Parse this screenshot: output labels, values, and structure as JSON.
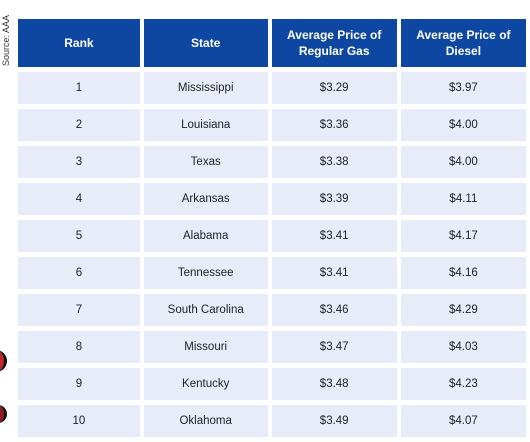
{
  "source_label": "Source: AAA",
  "table": {
    "headers": {
      "rank": "Rank",
      "state": "State",
      "regular": "Average Price of Regular Gas",
      "diesel": "Average Price of Diesel"
    },
    "rows": [
      {
        "rank": "1",
        "state": "Mississippi",
        "regular": "$3.29",
        "diesel": "$3.97"
      },
      {
        "rank": "2",
        "state": "Louisiana",
        "regular": "$3.36",
        "diesel": "$4.00"
      },
      {
        "rank": "3",
        "state": "Texas",
        "regular": "$3.38",
        "diesel": "$4.00"
      },
      {
        "rank": "4",
        "state": "Arkansas",
        "regular": "$3.39",
        "diesel": "$4.11"
      },
      {
        "rank": "5",
        "state": "Alabama",
        "regular": "$3.41",
        "diesel": "$4.17"
      },
      {
        "rank": "6",
        "state": "Tennessee",
        "regular": "$3.41",
        "diesel": "$4.16"
      },
      {
        "rank": "7",
        "state": "South Carolina",
        "regular": "$3.46",
        "diesel": "$4.29"
      },
      {
        "rank": "8",
        "state": "Missouri",
        "regular": "$3.47",
        "diesel": "$4.03"
      },
      {
        "rank": "9",
        "state": "Kentucky",
        "regular": "$3.48",
        "diesel": "$4.23"
      },
      {
        "rank": "10",
        "state": "Oklahoma",
        "regular": "$3.49",
        "diesel": "$4.07"
      }
    ]
  },
  "colors": {
    "header_bg": "#0d47a1",
    "cell_bg": "#e8ecf9",
    "logo_red": "#c0272d"
  }
}
